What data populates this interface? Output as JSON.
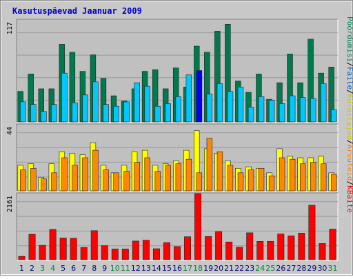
{
  "chart_data": {
    "type": "bar",
    "title": "Kasutuspäevad Jaanuar 2009",
    "categories": [
      "1",
      "2",
      "3",
      "4",
      "5",
      "6",
      "7",
      "8",
      "9",
      "10",
      "11",
      "12",
      "13",
      "14",
      "15",
      "16",
      "17",
      "18",
      "19",
      "20",
      "21",
      "22",
      "23",
      "24",
      "25",
      "26",
      "27",
      "28",
      "29",
      "30",
      "31"
    ],
    "weekend_days": [
      "3",
      "4",
      "10",
      "11",
      "17",
      "18",
      "24",
      "25",
      "31"
    ],
    "panels": [
      {
        "name": "top",
        "ymax_label": "117",
        "ymax": 117,
        "series": [
          {
            "name": "Pöördumisi",
            "color": "#007a4c",
            "values": [
              35,
              55,
              38,
              38,
              89,
              80,
              58,
              77,
              50,
              30,
              24,
              38,
              58,
              60,
              38,
              62,
              40,
              87,
              80,
              104,
              112,
              47,
              34,
              55,
              26,
              45,
              78,
              45,
              95,
              56,
              63
            ]
          },
          {
            "name": "Faile",
            "color": "#00c8ff",
            "values": [
              23,
              20,
              12,
              20,
              56,
              22,
              31,
              46,
              20,
              18,
              23,
              45,
              41,
              18,
              21,
              29,
              54,
              58,
              32,
              44,
              35,
              40,
              17,
              29,
              25,
              21,
              30,
              28,
              27,
              44,
              14
            ]
          },
          {
            "name": "Külastajad",
            "color": "#0000ff",
            "values": [
              0,
              0,
              0,
              0,
              0,
              0,
              0,
              0,
              0,
              0,
              0,
              0,
              0,
              0,
              0,
              0,
              0,
              59,
              0,
              0,
              0,
              0,
              0,
              0,
              0,
              0,
              0,
              0,
              0,
              0,
              0
            ]
          }
        ]
      },
      {
        "name": "mid",
        "ymax_label": "44",
        "ymax": 44,
        "series": [
          {
            "name": "Külastajad",
            "color": "#ffff00",
            "values": [
              17,
              18,
              9,
              18,
              26,
              25,
              24,
              32,
              17,
              12,
              17,
              26,
              27,
              17,
              18,
              20,
              27,
              40,
              28,
              25,
              20,
              15,
              16,
              15,
              12,
              28,
              23,
              22,
              22,
              23,
              12
            ]
          },
          {
            "name": "Arvuteid",
            "color": "#ff8800",
            "values": [
              14,
              15,
              8,
              12,
              22,
              17,
              22,
              27,
              14,
              12,
              13,
              19,
              22,
              13,
              17,
              18,
              21,
              12,
              35,
              26,
              17,
              12,
              14,
              15,
              10,
              22,
              21,
              18,
              19,
              18,
              11
            ]
          }
        ]
      },
      {
        "name": "bottom",
        "ymax_label": "2161",
        "ymax": 2161,
        "series": [
          {
            "name": "KBaite",
            "color": "#ff0000",
            "values": [
              110,
              830,
              470,
              990,
              710,
              700,
              400,
              950,
              460,
              350,
              350,
              610,
              640,
              360,
              560,
              430,
              750,
              2161,
              760,
              920,
              580,
              410,
              880,
              600,
              600,
              840,
              780,
              870,
              1780,
              530,
              1000
            ]
          }
        ]
      }
    ],
    "right_labels": [
      "Pöördumisi",
      "/",
      "Faile",
      "/",
      "Külastajad",
      "/",
      "Arvuteid",
      "/",
      "KBaite"
    ],
    "grid": true
  }
}
